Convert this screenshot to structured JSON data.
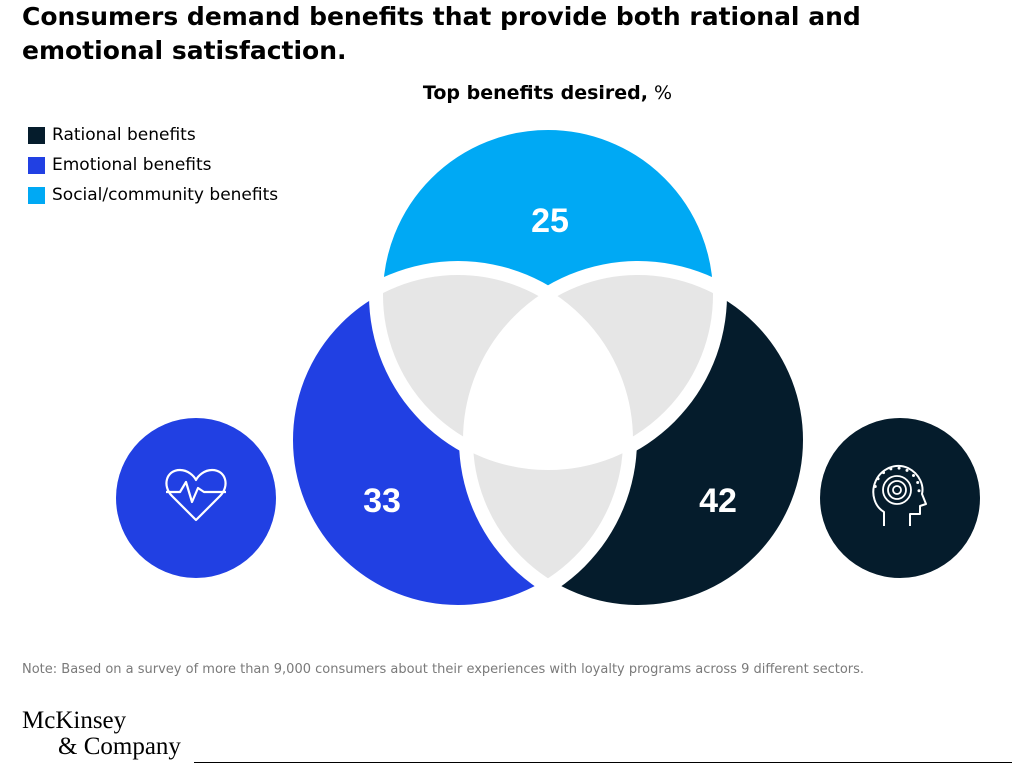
{
  "title": "Consumers demand benefits that provide both rational and emotional satisfaction.",
  "subtitle_bold": "Top benefits desired,",
  "subtitle_unit": "%",
  "legend": [
    {
      "label": "Rational benefits",
      "color": "#051c2c"
    },
    {
      "label": "Emotional benefits",
      "color": "#2140e3"
    },
    {
      "label": "Social/community benefits",
      "color": "#00a9f4"
    }
  ],
  "chart_data": {
    "type": "venn",
    "title": "Top benefits desired, %",
    "unit": "%",
    "series": [
      {
        "name": "Social/community benefits",
        "value": 25,
        "color": "#00a9f4"
      },
      {
        "name": "Emotional benefits",
        "value": 33,
        "color": "#2140e3"
      },
      {
        "name": "Rational benefits",
        "value": 42,
        "color": "#051c2c"
      }
    ],
    "overlap_color": "#e6e6e6",
    "icons": [
      {
        "name": "heart-pulse-icon",
        "color": "#2140e3"
      },
      {
        "name": "head-mind-icon",
        "color": "#051c2c"
      }
    ]
  },
  "note": "Note: Based on a survey of more than 9,000 consumers about their experiences with loyalty programs across 9 different sectors.",
  "logo_line1": "McKinsey",
  "logo_line2": "& Company"
}
